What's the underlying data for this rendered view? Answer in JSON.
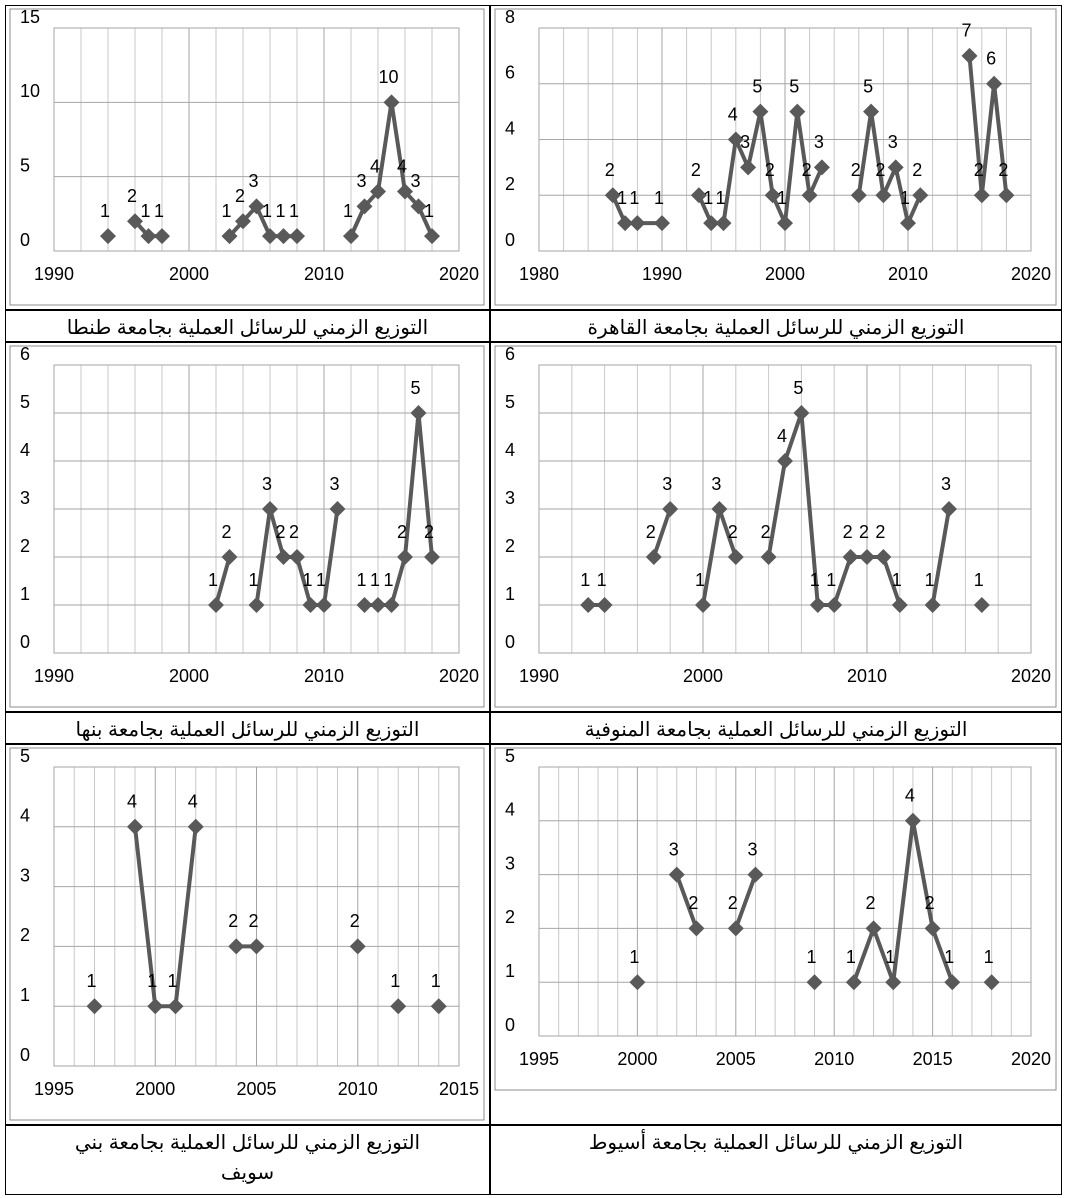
{
  "chart_data": [
    {
      "type": "line",
      "caption": "التوزيع الزمني للرسائل العملية بجامعة القاهرة",
      "color": "#595959",
      "grid": true,
      "x": [
        1986,
        1987,
        1988,
        1990,
        1991,
        1993,
        1994,
        1995,
        1996,
        1997,
        1998,
        1999,
        2000,
        2001,
        2002,
        2003,
        2004,
        2006,
        2007,
        2008,
        2009,
        2010,
        2011,
        2013,
        2015,
        2016,
        2017,
        2018
      ],
      "values": [
        2,
        1,
        1,
        1,
        null,
        2,
        1,
        1,
        4,
        3,
        5,
        2,
        1,
        5,
        2,
        3,
        null,
        2,
        5,
        2,
        3,
        1,
        2,
        null,
        7,
        2,
        6,
        2
      ],
      "xlim": [
        1980,
        2020
      ],
      "xticks": [
        1980,
        1990,
        2000,
        2010,
        2020
      ],
      "ylim": [
        0,
        8
      ],
      "yticks": [
        0,
        2,
        4,
        6,
        8
      ]
    },
    {
      "type": "line",
      "caption": "التوزيع الزمني للرسائل العملية بجامعة طنطا",
      "color": "#595959",
      "grid": true,
      "x": [
        1994,
        1995,
        1996,
        1997,
        1998,
        2000,
        2003,
        2004,
        2005,
        2006,
        2007,
        2008,
        2010,
        2012,
        2013,
        2014,
        2015,
        2016,
        2017,
        2018
      ],
      "values": [
        1,
        null,
        2,
        1,
        1,
        null,
        1,
        2,
        3,
        1,
        1,
        1,
        null,
        1,
        3,
        4,
        10,
        4,
        3,
        1
      ],
      "xlim": [
        1990,
        2020
      ],
      "xticks": [
        1990,
        2000,
        2010,
        2020
      ],
      "ylim": [
        0,
        15
      ],
      "yticks": [
        0,
        5,
        10,
        15
      ]
    },
    {
      "type": "line",
      "caption": "التوزيع الزمني للرسائل العملية بجامعة المنوفية",
      "color": "#595959",
      "grid": true,
      "x": [
        1993,
        1994,
        1995,
        1997,
        1998,
        1999,
        2000,
        2001,
        2002,
        2003,
        2004,
        2005,
        2006,
        2007,
        2008,
        2009,
        2010,
        2011,
        2012,
        2013,
        2014,
        2015,
        2016,
        2017
      ],
      "values": [
        1,
        1,
        null,
        2,
        3,
        null,
        1,
        3,
        2,
        null,
        2,
        4,
        5,
        1,
        1,
        2,
        2,
        2,
        1,
        null,
        1,
        3,
        null,
        1
      ],
      "xlim": [
        1990,
        2020
      ],
      "xticks": [
        1990,
        2000,
        2010,
        2020
      ],
      "ylim": [
        0,
        6
      ],
      "yticks": [
        0,
        1,
        2,
        3,
        4,
        5,
        6
      ]
    },
    {
      "type": "line",
      "caption": "التوزيع الزمني للرسائل العملية بجامعة بنها",
      "color": "#595959",
      "grid": true,
      "x": [
        2002,
        2003,
        2004,
        2005,
        2006,
        2007,
        2008,
        2009,
        2010,
        2011,
        2012,
        2013,
        2014,
        2015,
        2016,
        2017,
        2018
      ],
      "values": [
        1,
        2,
        null,
        1,
        3,
        2,
        2,
        1,
        1,
        3,
        null,
        1,
        1,
        1,
        2,
        5,
        2
      ],
      "xlim": [
        1990,
        2020
      ],
      "xticks": [
        1990,
        2000,
        2010,
        2020
      ],
      "ylim": [
        0,
        6
      ],
      "yticks": [
        0,
        1,
        2,
        3,
        4,
        5,
        6
      ]
    },
    {
      "type": "line",
      "caption": "التوزيع الزمني للرسائل العملية بجامعة أسيوط",
      "color": "#595959",
      "grid": true,
      "x": [
        2000,
        2001,
        2002,
        2003,
        2004,
        2005,
        2006,
        2007,
        2009,
        2010,
        2011,
        2012,
        2013,
        2014,
        2015,
        2016,
        2017,
        2018
      ],
      "values": [
        1,
        null,
        3,
        2,
        null,
        2,
        3,
        null,
        1,
        null,
        1,
        2,
        1,
        4,
        2,
        1,
        null,
        1
      ],
      "xlim": [
        1995,
        2020
      ],
      "xticks": [
        1995,
        2000,
        2005,
        2010,
        2015,
        2020
      ],
      "ylim": [
        0,
        5
      ],
      "yticks": [
        0,
        1,
        2,
        3,
        4,
        5
      ]
    },
    {
      "type": "line",
      "caption": "التوزيع الزمني للرسائل العملية بجامعة بني سويف",
      "color": "#595959",
      "grid": true,
      "x": [
        1997,
        1998,
        1999,
        2000,
        2001,
        2002,
        2003,
        2004,
        2005,
        2006,
        2010,
        2011,
        2012,
        2013,
        2014
      ],
      "values": [
        1,
        null,
        4,
        1,
        1,
        4,
        null,
        2,
        2,
        null,
        2,
        null,
        1,
        null,
        1
      ],
      "xlim": [
        1995,
        2015
      ],
      "xticks": [
        1995,
        2000,
        2005,
        2010,
        2015
      ],
      "ylim": [
        0,
        5
      ],
      "yticks": [
        0,
        1,
        2,
        3,
        4,
        5
      ]
    }
  ]
}
